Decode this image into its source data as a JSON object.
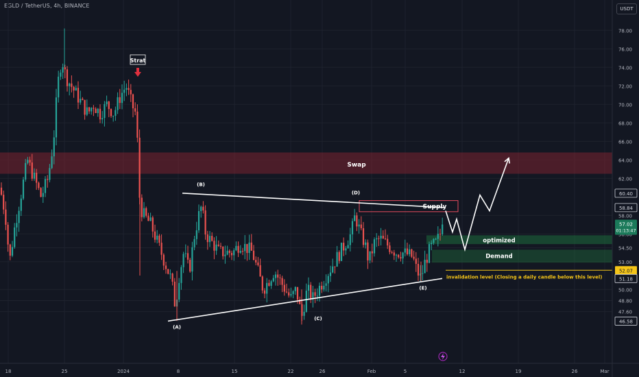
{
  "header": {
    "symbol_line": "EGLD / TetherUS, 4h, BINANCE",
    "currency_label": "USDT"
  },
  "chart_data": {
    "type": "candlestick",
    "ylim": [
      45.5,
      79.5
    ],
    "xlim_days": [
      "Dec 15",
      "Mar 1"
    ],
    "x_tick_labels": [
      {
        "label": "18",
        "x": 12
      },
      {
        "label": "25",
        "x": 94
      },
      {
        "label": "2024",
        "x": 180
      },
      {
        "label": "8",
        "x": 260
      },
      {
        "label": "15",
        "x": 342
      },
      {
        "label": "22",
        "x": 424
      },
      {
        "label": "26",
        "x": 470
      },
      {
        "label": "Feb",
        "x": 542
      },
      {
        "label": "5",
        "x": 591
      },
      {
        "label": "12",
        "x": 674
      },
      {
        "label": "19",
        "x": 756
      },
      {
        "label": "26",
        "x": 838
      },
      {
        "label": "Mar",
        "x": 882
      }
    ],
    "y_tick_labels": [
      "78.00",
      "76.00",
      "74.00",
      "72.00",
      "70.00",
      "68.00",
      "66.00",
      "64.00",
      "62.00",
      "58.00",
      "56.00",
      "54.50",
      "53.00",
      "50.00",
      "48.80",
      "47.60"
    ],
    "price_badges": [
      {
        "label": "60.40",
        "value": 60.4,
        "style": "dark"
      },
      {
        "label": "58.84",
        "value": 58.84,
        "style": "dark"
      },
      {
        "label": "57.02",
        "value": 57.02,
        "style": "green",
        "countdown": "01:13:47"
      },
      {
        "label": "52.07",
        "value": 52.07,
        "style": "yellow"
      },
      {
        "label": "51.18",
        "value": 51.18,
        "style": "dark"
      },
      {
        "label": "46.58",
        "value": 46.58,
        "style": "dark"
      }
    ],
    "key_path": [
      [
        0,
        61
      ],
      [
        8,
        58
      ],
      [
        14,
        53
      ],
      [
        22,
        57
      ],
      [
        30,
        60
      ],
      [
        40,
        64
      ],
      [
        50,
        62
      ],
      [
        60,
        60
      ],
      [
        70,
        62
      ],
      [
        78,
        66
      ],
      [
        84,
        72
      ],
      [
        90,
        75
      ],
      [
        96,
        73
      ],
      [
        104,
        72
      ],
      [
        112,
        71
      ],
      [
        120,
        70
      ],
      [
        128,
        69
      ],
      [
        136,
        70
      ],
      [
        146,
        69
      ],
      [
        156,
        70
      ],
      [
        166,
        69
      ],
      [
        176,
        71
      ],
      [
        184,
        72
      ],
      [
        192,
        70
      ],
      [
        198,
        69
      ],
      [
        202,
        64
      ],
      [
        204,
        59
      ],
      [
        210,
        58
      ],
      [
        220,
        57
      ],
      [
        230,
        55
      ],
      [
        240,
        53
      ],
      [
        250,
        51
      ],
      [
        256,
        48
      ],
      [
        260,
        51
      ],
      [
        268,
        54
      ],
      [
        276,
        52
      ],
      [
        284,
        56
      ],
      [
        290,
        58
      ],
      [
        294,
        59
      ],
      [
        300,
        56
      ],
      [
        310,
        55
      ],
      [
        320,
        54
      ],
      [
        330,
        54
      ],
      [
        340,
        54
      ],
      [
        350,
        55
      ],
      [
        360,
        54.5
      ],
      [
        368,
        54
      ],
      [
        376,
        52
      ],
      [
        384,
        50
      ],
      [
        392,
        51
      ],
      [
        400,
        52
      ],
      [
        408,
        51
      ],
      [
        416,
        50
      ],
      [
        424,
        49
      ],
      [
        432,
        50
      ],
      [
        440,
        47
      ],
      [
        448,
        50
      ],
      [
        456,
        49
      ],
      [
        464,
        50
      ],
      [
        472,
        51
      ],
      [
        480,
        52
      ],
      [
        488,
        53
      ],
      [
        496,
        54
      ],
      [
        504,
        55
      ],
      [
        512,
        56
      ],
      [
        518,
        58
      ],
      [
        522,
        57
      ],
      [
        526,
        56
      ],
      [
        532,
        55
      ],
      [
        538,
        53
      ],
      [
        546,
        55
      ],
      [
        554,
        55.5
      ],
      [
        562,
        55
      ],
      [
        570,
        54.5
      ],
      [
        578,
        54
      ],
      [
        586,
        54
      ],
      [
        594,
        53.8
      ],
      [
        602,
        53.5
      ],
      [
        608,
        52
      ],
      [
        614,
        51.2
      ],
      [
        620,
        53
      ],
      [
        628,
        54.5
      ],
      [
        636,
        55
      ],
      [
        642,
        56
      ],
      [
        648,
        57.02
      ]
    ],
    "zones": [
      {
        "name": "Swap",
        "y_top": 64.8,
        "y_bottom": 62.5,
        "color": "#e84c5f"
      },
      {
        "name": "Supply",
        "y_top": 59.6,
        "y_bottom": 58.4,
        "color": "#e84c5f"
      },
      {
        "name": "optimized",
        "y_top": 55.85,
        "y_bottom": 54.9,
        "color": "#26a69a"
      },
      {
        "name": "Demand",
        "y_top": 54.3,
        "y_bottom": 52.9,
        "color": "#26a69a"
      }
    ],
    "trendlines": [
      {
        "from": [
          266,
          60.4
        ],
        "to": [
          650,
          58.84
        ]
      },
      {
        "from": [
          245,
          46.58
        ],
        "to": [
          645,
          51.18
        ]
      }
    ],
    "annotations": {
      "strat": "Strat",
      "swap": "Swap",
      "supply": "Supply",
      "optimized": "optimized",
      "demand": "Demand",
      "invalidation": "invalidation level (Closing a daily candle below this level)",
      "waves": [
        {
          "label": "(A)",
          "x": 258,
          "y": 46.0
        },
        {
          "label": "(B)",
          "x": 293,
          "y": 61.4
        },
        {
          "label": "(C)",
          "x": 464,
          "y": 46.9
        },
        {
          "label": "(D)",
          "x": 519,
          "y": 60.5
        },
        {
          "label": "(E)",
          "x": 617,
          "y": 50.2
        }
      ]
    },
    "projection": [
      [
        650,
        58.5
      ],
      [
        660,
        56.2
      ],
      [
        666,
        57.6
      ],
      [
        678,
        54.3
      ],
      [
        700,
        60.2
      ],
      [
        714,
        58.5
      ],
      [
        742,
        64.2
      ]
    ],
    "colors": {
      "up": "#26a69a",
      "down": "#ef5350",
      "background": "#131722",
      "grid": "#1e222d",
      "axis_text": "#b2b5be"
    }
  }
}
